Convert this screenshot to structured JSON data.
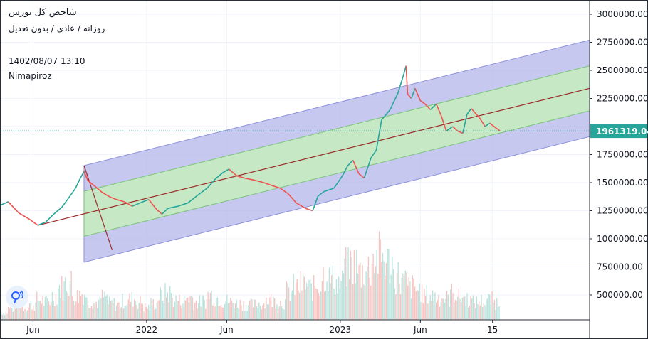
{
  "header": {
    "title": "شاخص کل بورس",
    "subtitle": "روزانه / عادی / بدون تعدیل",
    "date": "1402/08/07 13:10",
    "author": "Nimapiroz"
  },
  "colors": {
    "up": "#26a69a",
    "down": "#ef5350",
    "outer_channel": "#b3b5ea",
    "inner_channel": "#c5ebc0",
    "median_line": "#9c2a2a",
    "price_line": "#26a69a",
    "grid": "#f0f3fa"
  },
  "chart_data": {
    "type": "line",
    "title": "شاخص کل بورس",
    "y_axis": {
      "min": 200000,
      "max": 3100000,
      "ticks": [
        3000000,
        2750000,
        2500000,
        2250000,
        2000000,
        1750000,
        1500000,
        1250000,
        1000000,
        750000,
        500000
      ],
      "tick_labels": [
        "3000000.00",
        "2750000.00",
        "2500000.00",
        "2250000.00",
        "1750000.00",
        "1500000.00",
        "1250000.00",
        "1000000.00",
        "750000.00",
        "500000.00"
      ]
    },
    "x_axis": {
      "start": "2021-04-01",
      "end": "2024-04-15",
      "tick_labels": [
        "Jun",
        "2022",
        "Jun",
        "2023",
        "Jun",
        "15"
      ],
      "tick_dates": [
        "2021-06-01",
        "2022-01-01",
        "2022-06-01",
        "2023-01-01",
        "2023-06-01",
        "2023-10-15"
      ]
    },
    "current_price": "1961319.04",
    "series": [
      {
        "points": [
          [
            "2021-04-01",
            1300000
          ],
          [
            "2021-04-15",
            1330000
          ],
          [
            "2021-05-05",
            1230000
          ],
          [
            "2021-05-25",
            1175000
          ],
          [
            "2021-06-10",
            1120000
          ],
          [
            "2021-06-25",
            1150000
          ],
          [
            "2021-07-10",
            1220000
          ],
          [
            "2021-07-25",
            1280000
          ],
          [
            "2021-08-05",
            1350000
          ],
          [
            "2021-08-20",
            1450000
          ],
          [
            "2021-08-28",
            1530000
          ],
          [
            "2021-09-05",
            1600000
          ],
          [
            "2021-09-12",
            1520000
          ],
          [
            "2021-09-25",
            1470000
          ],
          [
            "2021-10-10",
            1410000
          ],
          [
            "2021-10-25",
            1370000
          ],
          [
            "2021-11-05",
            1350000
          ],
          [
            "2021-11-20",
            1330000
          ],
          [
            "2021-12-05",
            1290000
          ],
          [
            "2021-12-20",
            1320000
          ],
          [
            "2022-01-05",
            1350000
          ],
          [
            "2022-01-20",
            1260000
          ],
          [
            "2022-01-30",
            1220000
          ],
          [
            "2022-02-10",
            1270000
          ],
          [
            "2022-03-01",
            1290000
          ],
          [
            "2022-03-20",
            1320000
          ],
          [
            "2022-04-05",
            1380000
          ],
          [
            "2022-04-25",
            1450000
          ],
          [
            "2022-05-10",
            1530000
          ],
          [
            "2022-05-25",
            1590000
          ],
          [
            "2022-06-05",
            1620000
          ],
          [
            "2022-06-20",
            1560000
          ],
          [
            "2022-07-05",
            1540000
          ],
          [
            "2022-07-25",
            1520000
          ],
          [
            "2022-08-10",
            1500000
          ],
          [
            "2022-08-25",
            1475000
          ],
          [
            "2022-09-10",
            1450000
          ],
          [
            "2022-09-25",
            1400000
          ],
          [
            "2022-10-10",
            1320000
          ],
          [
            "2022-10-28",
            1270000
          ],
          [
            "2022-11-10",
            1250000
          ],
          [
            "2022-11-20",
            1380000
          ],
          [
            "2022-12-01",
            1420000
          ],
          [
            "2022-12-20",
            1450000
          ],
          [
            "2023-01-05",
            1560000
          ],
          [
            "2023-01-15",
            1650000
          ],
          [
            "2023-01-25",
            1700000
          ],
          [
            "2023-02-05",
            1580000
          ],
          [
            "2023-02-15",
            1540000
          ],
          [
            "2023-02-28",
            1720000
          ],
          [
            "2023-03-10",
            1790000
          ],
          [
            "2023-03-20",
            2060000
          ],
          [
            "2023-04-05",
            2150000
          ],
          [
            "2023-04-20",
            2300000
          ],
          [
            "2023-05-01",
            2470000
          ],
          [
            "2023-05-05",
            2540000
          ],
          [
            "2023-05-08",
            2290000
          ],
          [
            "2023-05-15",
            2250000
          ],
          [
            "2023-05-22",
            2340000
          ],
          [
            "2023-06-01",
            2230000
          ],
          [
            "2023-06-10",
            2200000
          ],
          [
            "2023-06-20",
            2150000
          ],
          [
            "2023-07-01",
            2200000
          ],
          [
            "2023-07-10",
            2100000
          ],
          [
            "2023-07-20",
            1960000
          ],
          [
            "2023-08-01",
            2000000
          ],
          [
            "2023-08-10",
            1960000
          ],
          [
            "2023-08-20",
            1940000
          ],
          [
            "2023-08-28",
            2110000
          ],
          [
            "2023-09-05",
            2160000
          ],
          [
            "2023-09-20",
            2080000
          ],
          [
            "2023-10-01",
            2000000
          ],
          [
            "2023-10-10",
            2030000
          ],
          [
            "2023-10-15",
            2010000
          ],
          [
            "2023-10-29",
            1961319
          ]
        ]
      }
    ],
    "regression_channel": {
      "start": [
        "2021-06-10",
        1120000
      ],
      "end": [
        "2024-04-15",
        2340000
      ],
      "inner_offset": 200000,
      "outer_offset": 430000
    },
    "volume": {
      "start": "2021-04-01",
      "end": "2023-10-29",
      "max": 2200000000,
      "values": [
        120,
        180,
        260,
        200,
        240,
        320,
        280,
        380,
        520,
        600,
        380,
        420,
        300,
        280,
        360,
        260,
        240,
        300,
        330,
        280,
        200,
        260,
        380,
        420,
        320,
        300,
        360,
        280,
        300,
        400,
        350,
        300,
        280,
        260,
        250,
        240,
        260,
        320,
        300,
        280,
        440,
        520,
        560,
        500,
        560,
        720,
        640,
        580,
        820,
        880,
        760,
        820,
        980,
        1000,
        900,
        700,
        600,
        520,
        480,
        400,
        380,
        360,
        340,
        420,
        360,
        330,
        280,
        300,
        320,
        280
      ]
    }
  }
}
